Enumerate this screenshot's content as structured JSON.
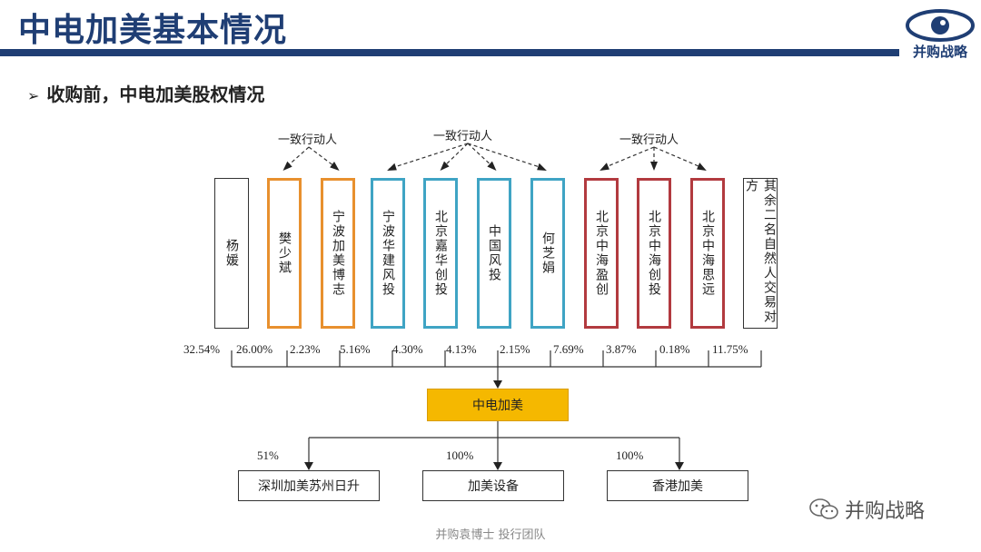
{
  "header": {
    "title": "中电加美基本情况",
    "logo_text": "并购战略"
  },
  "subtitle": "收购前，中电加美股权情况",
  "groups": [
    {
      "label": "一致行动人",
      "color": "#e8902e"
    },
    {
      "label": "一致行动人",
      "color": "#3fa4c4"
    },
    {
      "label": "一致行动人",
      "color": "#b23a3f"
    }
  ],
  "shareholders": [
    {
      "name": "杨媛",
      "pct": "32.54%",
      "color": "#333333"
    },
    {
      "name": "樊少斌",
      "pct": "26.00%",
      "color": "#e8902e"
    },
    {
      "name": "宁波加美博志",
      "pct": "2.23%",
      "color": "#e8902e"
    },
    {
      "name": "宁波华建风投",
      "pct": "5.16%",
      "color": "#3fa4c4"
    },
    {
      "name": "北京嘉华创投",
      "pct": "4.30%",
      "color": "#3fa4c4"
    },
    {
      "name": "中国风投",
      "pct": "4.13%",
      "color": "#3fa4c4"
    },
    {
      "name": "何芝娟",
      "pct": "2.15%",
      "color": "#3fa4c4"
    },
    {
      "name": "北京中海盈创",
      "pct": "7.69%",
      "color": "#b23a3f"
    },
    {
      "name": "北京中海创投",
      "pct": "3.87%",
      "color": "#b23a3f"
    },
    {
      "name": "北京中海思远",
      "pct": "0.18%",
      "color": "#b23a3f"
    },
    {
      "name": "其余二名自然人交易对方",
      "pct": "11.75%",
      "color": "#333333"
    }
  ],
  "company": {
    "name": "中电加美",
    "color": "#f5b800"
  },
  "subsidiaries": [
    {
      "name": "深圳加美苏州日升",
      "pct": "51%"
    },
    {
      "name": "加美设备",
      "pct": "100%"
    },
    {
      "name": "香港加美",
      "pct": "100%"
    }
  ],
  "footer": "并购袁博士 投行团队",
  "watermark": "并购战略"
}
